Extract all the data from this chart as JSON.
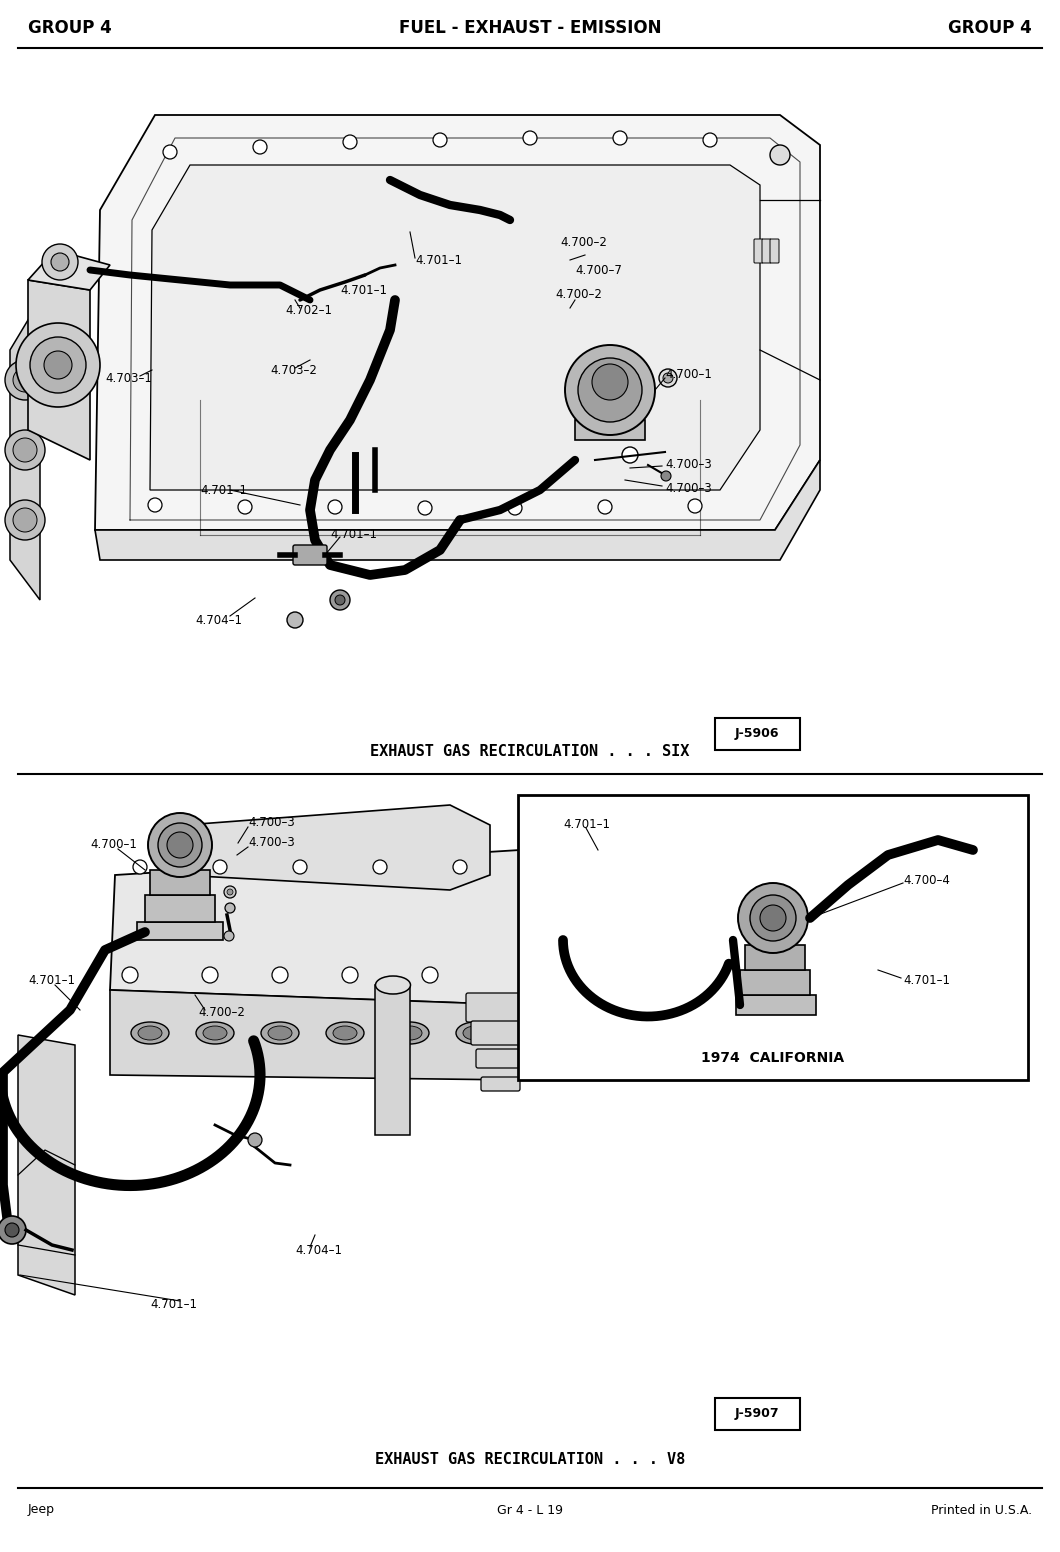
{
  "title_center": "FUEL - EXHAUST - EMISSION",
  "title_left": "GROUP 4",
  "title_right": "GROUP 4",
  "caption1": "EXHAUST GAS RECIRCULATION . . . SIX",
  "caption2": "EXHAUST GAS RECIRCULATION . . . V8",
  "footer_left": "Jeep",
  "footer_center": "Gr 4 - L 19",
  "footer_right": "Printed in U.S.A.",
  "label_j5906": "J-5906",
  "label_j5907": "J-5907",
  "label_california": "1974  CALIFORNIA",
  "bg_color": "#ffffff",
  "lc": "#000000",
  "tc": "#000000",
  "fig_width": 10.6,
  "fig_height": 15.52
}
